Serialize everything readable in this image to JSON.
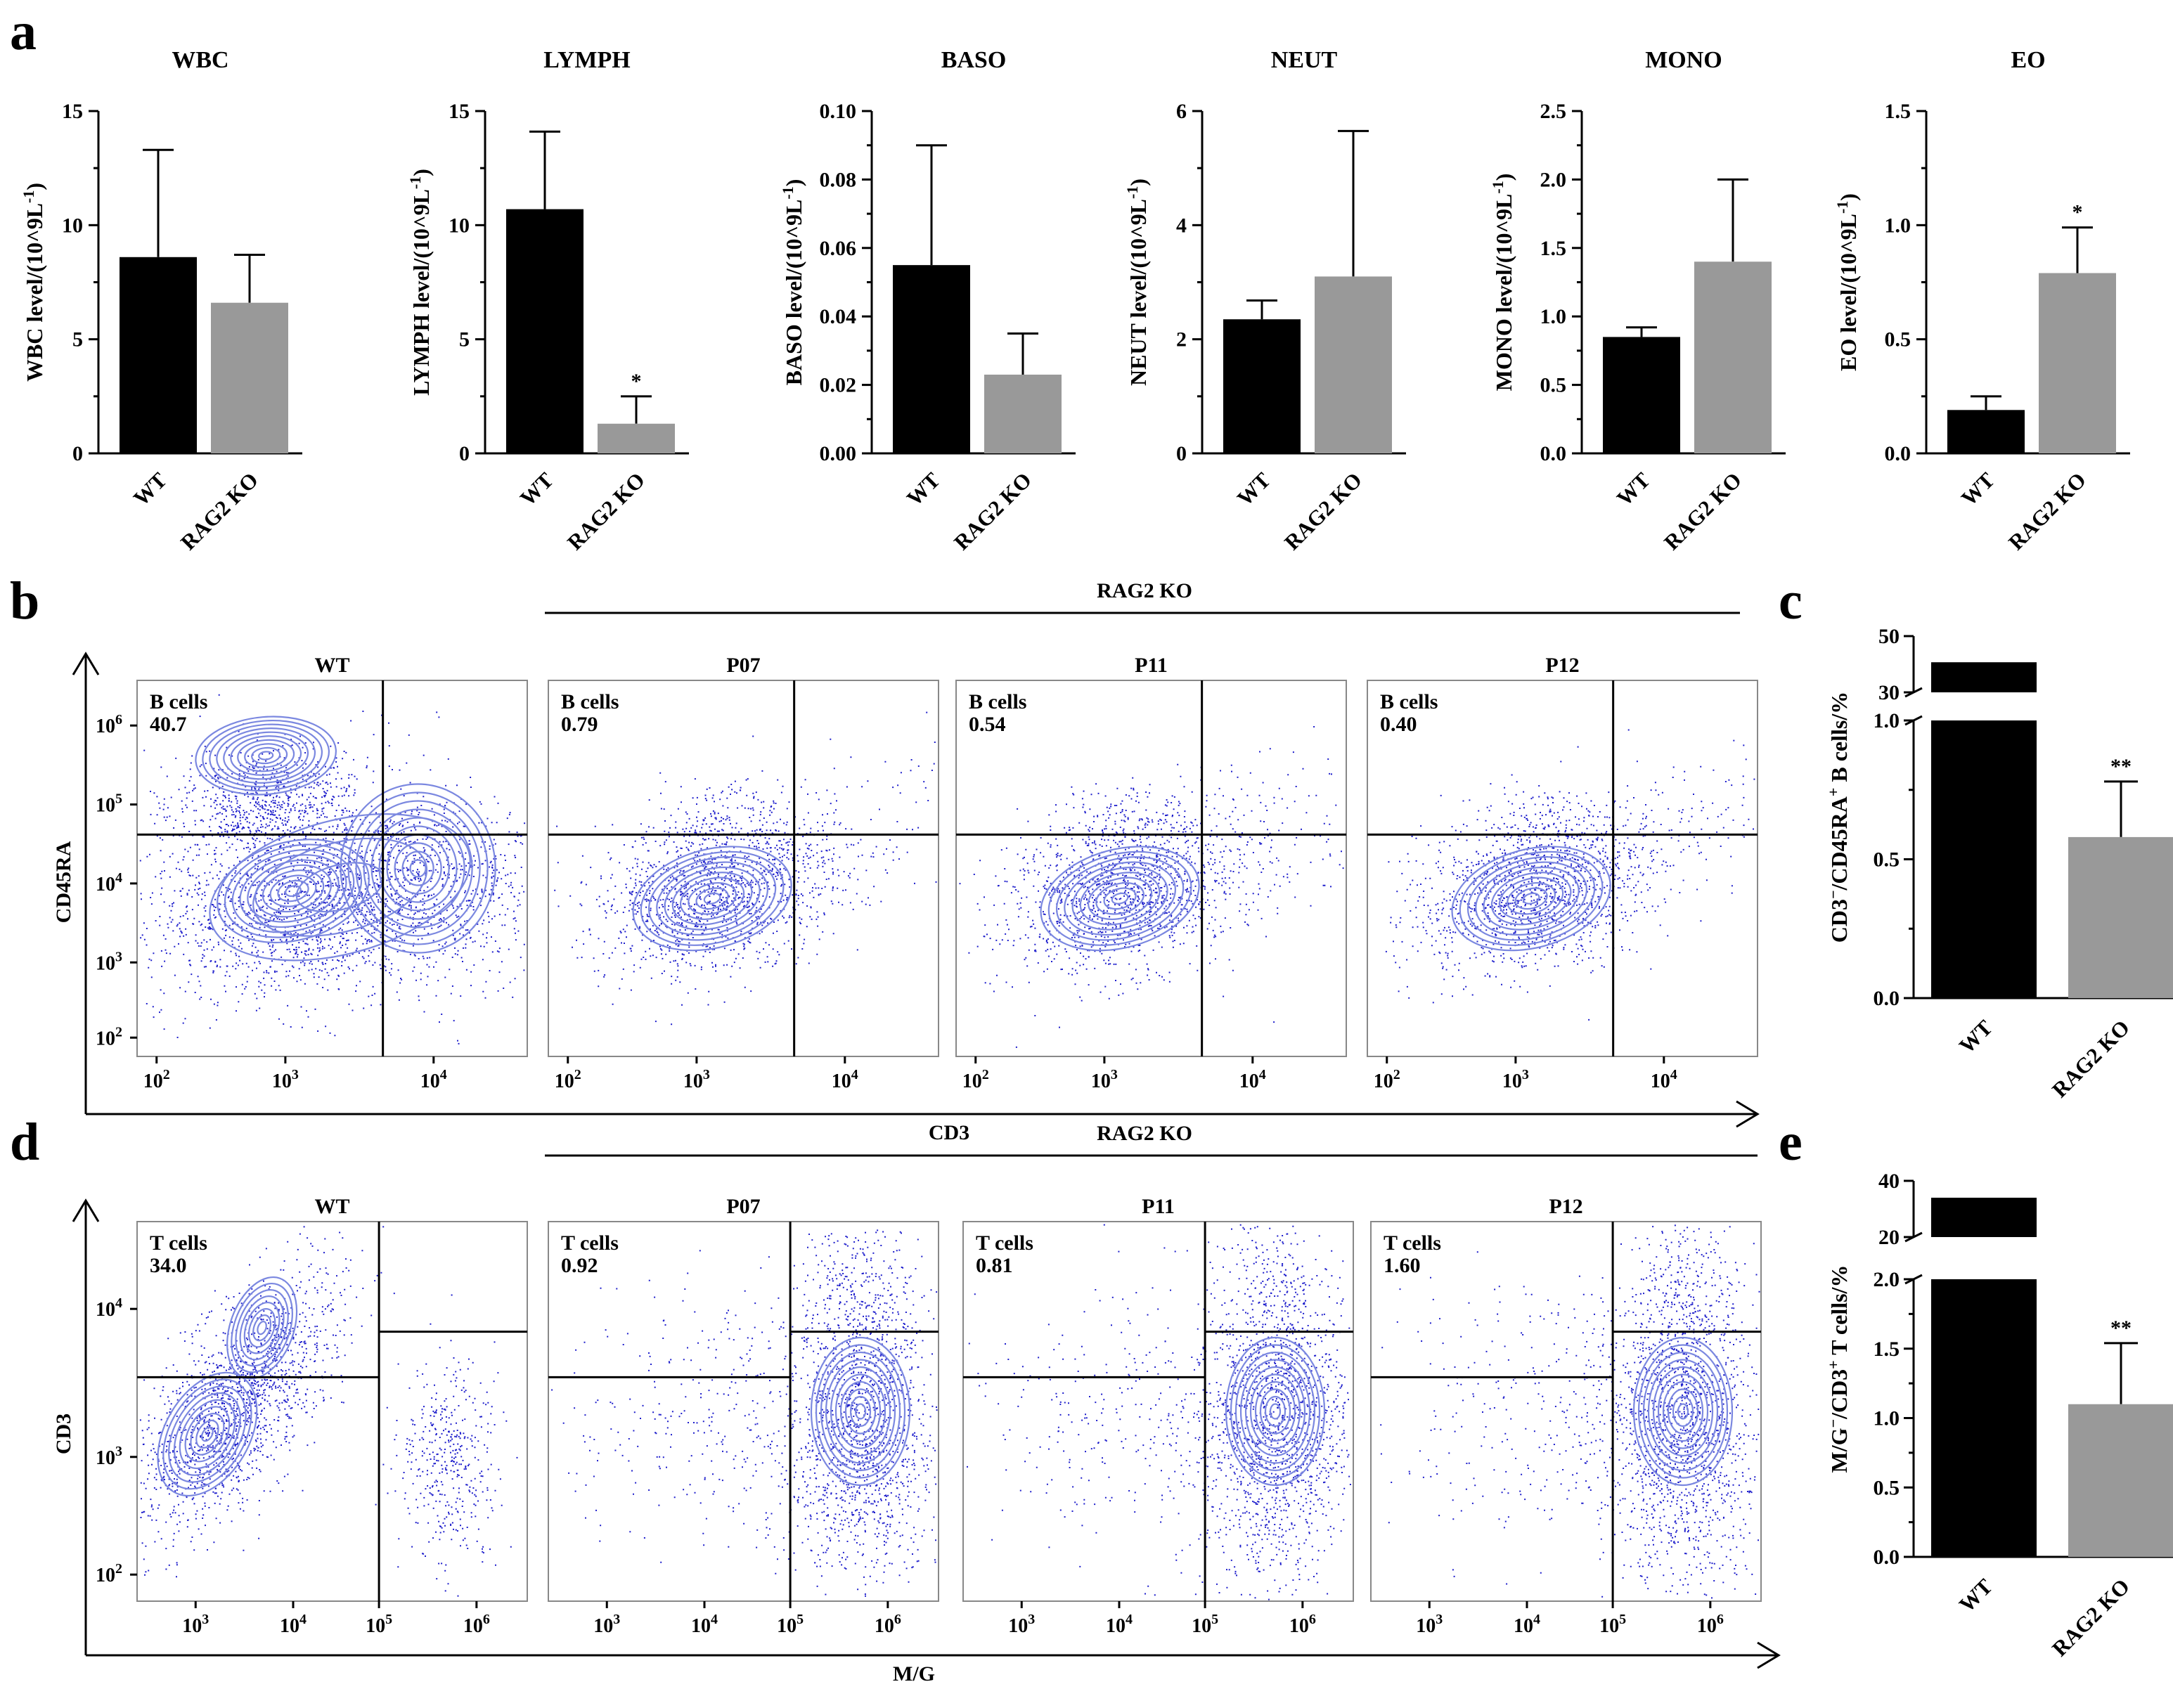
{
  "panels": {
    "a": "a",
    "b": "b",
    "c": "c",
    "d": "d",
    "e": "e"
  },
  "colors": {
    "wt": "#000000",
    "ko": "#999999",
    "flow": "#1f1fcc",
    "contour": "#7b88e0"
  },
  "chart_data": [
    {
      "type": "bar",
      "id": "WBC",
      "title": "WBC",
      "ylabel": "WBC level/(10^9L",
      "categories": [
        "WT",
        "RAG2 KO"
      ],
      "values": [
        8.6,
        6.6
      ],
      "errors": [
        4.7,
        2.1
      ],
      "ylim": [
        0,
        15
      ],
      "ticks": [
        "0",
        "5",
        "10",
        "15"
      ],
      "stars": [
        "",
        ""
      ]
    },
    {
      "type": "bar",
      "id": "LYMPH",
      "title": "LYMPH",
      "ylabel": "LYMPH level/(10^9L",
      "categories": [
        "WT",
        "RAG2 KO"
      ],
      "values": [
        10.7,
        1.3
      ],
      "errors": [
        3.4,
        1.2
      ],
      "ylim": [
        0,
        15
      ],
      "ticks": [
        "0",
        "5",
        "10",
        "15"
      ],
      "stars": [
        "",
        "*"
      ]
    },
    {
      "type": "bar",
      "id": "BASO",
      "title": "BASO",
      "ylabel": "BASO level/(10^9L",
      "categories": [
        "WT",
        "RAG2 KO"
      ],
      "values": [
        0.055,
        0.023
      ],
      "errors": [
        0.035,
        0.012
      ],
      "ylim": [
        0,
        0.1
      ],
      "ticks": [
        "0.00",
        "0.02",
        "0.04",
        "0.06",
        "0.08",
        "0.10"
      ],
      "stars": [
        "",
        ""
      ]
    },
    {
      "type": "bar",
      "id": "NEUT",
      "title": "NEUT",
      "ylabel": "NEUT level/(10^9L",
      "categories": [
        "WT",
        "RAG2 KO"
      ],
      "values": [
        2.35,
        3.1
      ],
      "errors": [
        0.33,
        2.55
      ],
      "ylim": [
        0,
        6
      ],
      "ticks": [
        "0",
        "2",
        "4",
        "6"
      ],
      "stars": [
        "",
        ""
      ]
    },
    {
      "type": "bar",
      "id": "MONO",
      "title": "MONO",
      "ylabel": "MONO level/(10^9L",
      "categories": [
        "WT",
        "RAG2 KO"
      ],
      "values": [
        0.85,
        1.4
      ],
      "errors": [
        0.07,
        0.6
      ],
      "ylim": [
        0,
        2.5
      ],
      "ticks": [
        "0.0",
        "0.5",
        "1.0",
        "1.5",
        "2.0",
        "2.5"
      ],
      "stars": [
        "",
        ""
      ]
    },
    {
      "type": "bar",
      "id": "EO",
      "title": "EO",
      "ylabel": "EO level/(10^9L",
      "categories": [
        "WT",
        "RAG2 KO"
      ],
      "values": [
        0.19,
        0.79
      ],
      "errors": [
        0.06,
        0.2
      ],
      "ylim": [
        0,
        1.5
      ],
      "ticks": [
        "0.0",
        "0.5",
        "1.0",
        "1.5"
      ],
      "stars": [
        "",
        "*"
      ]
    },
    {
      "type": "bar",
      "id": "c",
      "ylabel_parts": [
        "CD3",
        "/CD45RA",
        "B cells/%"
      ],
      "categories": [
        "WT",
        "RAG2 KO"
      ],
      "values": [
        40.7,
        0.58
      ],
      "errors": [
        0,
        0.2
      ],
      "broken_axis": {
        "lower": [
          0,
          1.0
        ],
        "upper": [
          30,
          50
        ]
      },
      "ticks": [
        "0.0",
        "0.5",
        "1.0",
        "30",
        "50"
      ],
      "stars": [
        "",
        "**"
      ]
    },
    {
      "type": "bar",
      "id": "e",
      "ylabel_parts": [
        "M/G",
        "/CD3",
        "T cells/%"
      ],
      "categories": [
        "WT",
        "RAG2 KO"
      ],
      "values": [
        34.0,
        1.1
      ],
      "errors": [
        0,
        0.44
      ],
      "broken_axis": {
        "lower": [
          0,
          2.0
        ],
        "upper": [
          20,
          40
        ]
      },
      "ticks": [
        "0.0",
        "0.5",
        "1.0",
        "1.5",
        "2.0",
        "20",
        "40"
      ],
      "stars": [
        "",
        "**"
      ]
    }
  ],
  "flow_b": {
    "group_label": "RAG2 KO",
    "x_axis": "CD3",
    "y_axis": "CD45RA",
    "plots": [
      {
        "title": "WT",
        "gate": "B cells",
        "value": "40.7"
      },
      {
        "title": "P07",
        "gate": "B cells",
        "value": "0.79"
      },
      {
        "title": "P11",
        "gate": "B cells",
        "value": "0.54"
      },
      {
        "title": "P12",
        "gate": "B cells",
        "value": "0.40"
      }
    ],
    "x_ticks": [
      {
        "b": "10",
        "e": "2"
      },
      {
        "b": "10",
        "e": "3"
      },
      {
        "b": "10",
        "e": "4"
      }
    ],
    "y_ticks": [
      {
        "b": "10",
        "e": "2"
      },
      {
        "b": "10",
        "e": "3"
      },
      {
        "b": "10",
        "e": "4"
      },
      {
        "b": "10",
        "e": "5"
      },
      {
        "b": "10",
        "e": "6"
      }
    ]
  },
  "flow_d": {
    "group_label": "RAG2 KO",
    "x_axis": "M/G",
    "y_axis": "CD3",
    "plots": [
      {
        "title": "WT",
        "gate": "T cells",
        "value": "34.0"
      },
      {
        "title": "P07",
        "gate": "T cells",
        "value": "0.92"
      },
      {
        "title": "P11",
        "gate": "T cells",
        "value": "0.81"
      },
      {
        "title": "P12",
        "gate": "T cells",
        "value": "1.60"
      }
    ],
    "x_ticks": [
      {
        "b": "10",
        "e": "3"
      },
      {
        "b": "10",
        "e": "4"
      },
      {
        "b": "10",
        "e": "5"
      },
      {
        "b": "10",
        "e": "6"
      }
    ],
    "y_ticks": [
      {
        "b": "10",
        "e": "2"
      },
      {
        "b": "10",
        "e": "3"
      },
      {
        "b": "10",
        "e": "4"
      }
    ]
  }
}
